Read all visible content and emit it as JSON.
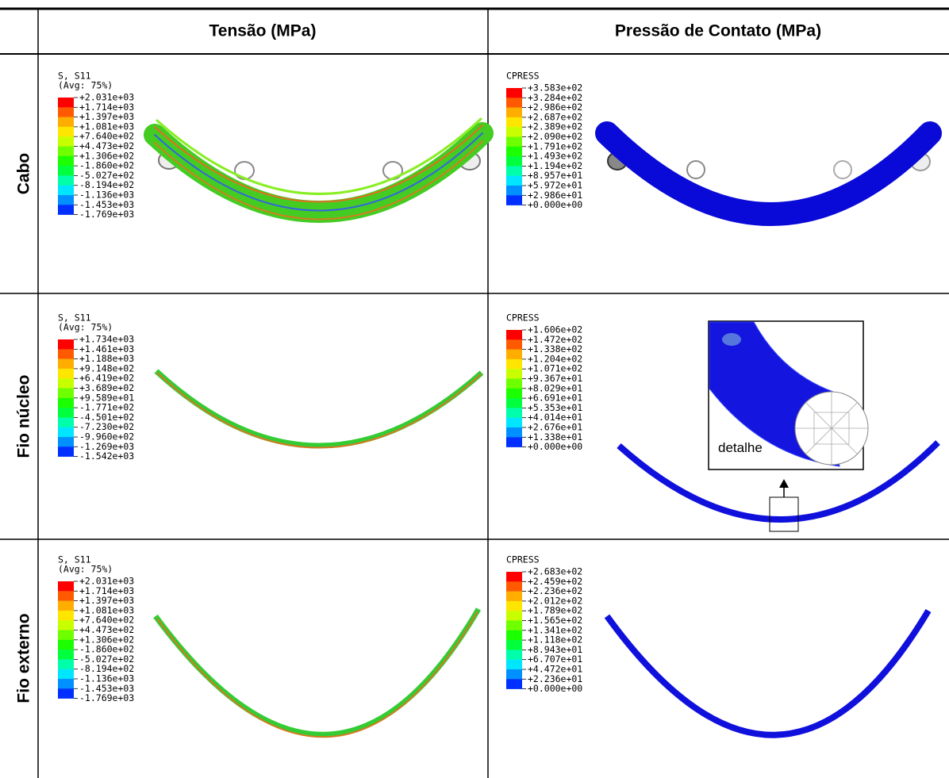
{
  "table": {
    "headers": [
      "Tensão (MPa)",
      "Pressão de Contato (MPa)"
    ],
    "contour_colors": [
      "#ff0000",
      "#ff5a00",
      "#ffae00",
      "#ffe600",
      "#c8ff00",
      "#6eff00",
      "#1cff00",
      "#00ff3c",
      "#00ffaa",
      "#00e6ff",
      "#0090ff",
      "#0030ff"
    ],
    "rows": [
      {
        "label": "Cabo",
        "cells": [
          {
            "legend_title": [
              "S, S11",
              "(Avg: 75%)"
            ],
            "legend_values": [
              "+2.031e+03",
              "+1.714e+03",
              "+1.397e+03",
              "+1.081e+03",
              "+7.640e+02",
              "+4.473e+02",
              "+1.306e+02",
              "-1.860e+02",
              "-5.027e+02",
              "-8.194e+02",
              "-1.136e+03",
              "-1.453e+03",
              "-1.769e+03"
            ]
          },
          {
            "legend_title": [
              "CPRESS"
            ],
            "legend_values": [
              "+3.583e+02",
              "+3.284e+02",
              "+2.986e+02",
              "+2.687e+02",
              "+2.389e+02",
              "+2.090e+02",
              "+1.791e+02",
              "+1.493e+02",
              "+1.194e+02",
              "+8.957e+01",
              "+5.972e+01",
              "+2.986e+01",
              "+0.000e+00"
            ]
          }
        ]
      },
      {
        "label": "Fio núcleo",
        "cells": [
          {
            "legend_title": [
              "S, S11",
              "(Avg: 75%)"
            ],
            "legend_values": [
              "+1.734e+03",
              "+1.461e+03",
              "+1.188e+03",
              "+9.148e+02",
              "+6.419e+02",
              "+3.689e+02",
              "+9.589e+01",
              "-1.771e+02",
              "-4.501e+02",
              "-7.230e+02",
              "-9.960e+02",
              "-1.269e+03",
              "-1.542e+03"
            ]
          },
          {
            "legend_title": [
              "CPRESS"
            ],
            "legend_values": [
              "+1.606e+02",
              "+1.472e+02",
              "+1.338e+02",
              "+1.204e+02",
              "+1.071e+02",
              "+9.367e+01",
              "+8.029e+01",
              "+6.691e+01",
              "+5.353e+01",
              "+4.014e+01",
              "+2.676e+01",
              "+1.338e+01",
              "+0.000e+00"
            ]
          }
        ]
      },
      {
        "label": "Fio externo",
        "cells": [
          {
            "legend_title": [
              "S, S11",
              "(Avg: 75%)"
            ],
            "legend_values": [
              "+2.031e+03",
              "+1.714e+03",
              "+1.397e+03",
              "+1.081e+03",
              "+7.640e+02",
              "+4.473e+02",
              "+1.306e+02",
              "-1.860e+02",
              "-5.027e+02",
              "-8.194e+02",
              "-1.136e+03",
              "-1.453e+03",
              "-1.769e+03"
            ]
          },
          {
            "legend_title": [
              "CPRESS"
            ],
            "legend_values": [
              "+2.683e+02",
              "+2.459e+02",
              "+2.236e+02",
              "+2.012e+02",
              "+1.789e+02",
              "+1.565e+02",
              "+1.341e+02",
              "+1.118e+02",
              "+8.943e+01",
              "+6.707e+01",
              "+4.472e+01",
              "+2.236e+01",
              "+0.000e+00"
            ]
          }
        ]
      }
    ]
  },
  "detail_label": "detalhe"
}
